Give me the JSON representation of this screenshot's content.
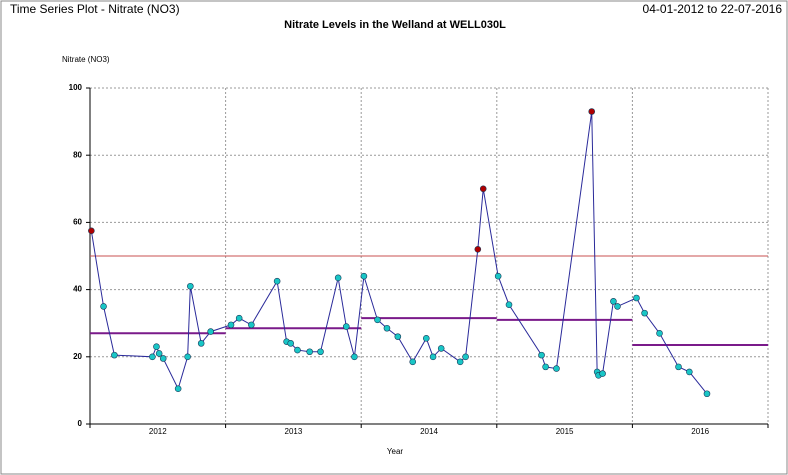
{
  "header": {
    "title": "Time Series Plot - Nitrate (NO3)",
    "date_range": "04-01-2012 to 22-07-2016"
  },
  "chart_data": {
    "type": "line",
    "title": "Nitrate Levels in the Welland at WELL030L",
    "y_label": "Nitrate (NO3)",
    "x_label": "Year",
    "categories": [
      "2012",
      "2013",
      "2014",
      "2015",
      "2016"
    ],
    "x": [
      2012.01,
      2012.1,
      2012.18,
      2012.46,
      2012.49,
      2012.51,
      2012.54,
      2012.65,
      2012.72,
      2012.74,
      2012.82,
      2012.89,
      2013.04,
      2013.1,
      2013.19,
      2013.38,
      2013.45,
      2013.48,
      2013.53,
      2013.62,
      2013.7,
      2013.83,
      2013.89,
      2013.95,
      2014.02,
      2014.12,
      2014.19,
      2014.27,
      2014.38,
      2014.48,
      2014.53,
      2014.59,
      2014.73,
      2014.77,
      2014.86,
      2014.9,
      2015.01,
      2015.09,
      2015.33,
      2015.36,
      2015.44,
      2015.7,
      2015.74,
      2015.75,
      2015.78,
      2015.86,
      2015.89,
      2016.03,
      2016.09,
      2016.2,
      2016.34,
      2016.42,
      2016.55
    ],
    "values": [
      57.5,
      35,
      20.5,
      20,
      23,
      21,
      19.5,
      10.5,
      20,
      41,
      24,
      27.5,
      29.5,
      31.5,
      29.5,
      42.5,
      24.5,
      24,
      22,
      21.5,
      21.5,
      43.5,
      29,
      20,
      44,
      31,
      28.5,
      26,
      18.5,
      25.5,
      20,
      22.5,
      18.5,
      20,
      52,
      70,
      44,
      35.5,
      20.5,
      17,
      16.5,
      93,
      15.5,
      14.5,
      15,
      36.5,
      35,
      37.5,
      33,
      27,
      17,
      15.5,
      9
    ],
    "line_color": "#2a2a9a",
    "marker_color": "#19c6c6",
    "exceed_color": "#b00000",
    "threshold": 50,
    "threshold_color": "#c85050",
    "annual_means": {
      "color": "#7a1a8a",
      "values": [
        27,
        28.5,
        31.5,
        31,
        23.5
      ]
    },
    "xlim": [
      2012,
      2017
    ],
    "xticks": [
      2012,
      2013,
      2014,
      2015,
      2016,
      2017
    ],
    "ylim": [
      0,
      100
    ],
    "yticks": [
      0,
      20,
      40,
      60,
      80,
      100
    ],
    "grid": true
  }
}
